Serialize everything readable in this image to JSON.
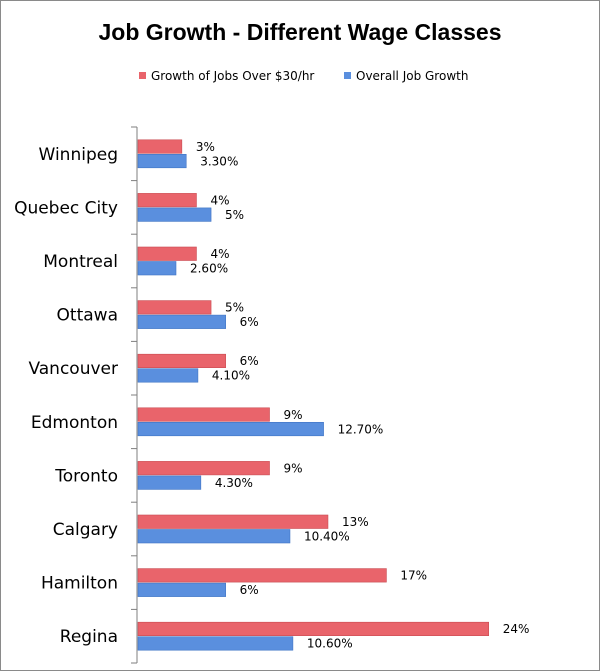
{
  "chart_data": {
    "type": "bar",
    "orientation": "horizontal",
    "title": "Job Growth - Different Wage Classes",
    "categories": [
      "Winnipeg",
      "Quebec City",
      "Montreal",
      "Ottawa",
      "Vancouver",
      "Edmonton",
      "Toronto",
      "Calgary",
      "Hamilton",
      "Regina"
    ],
    "series": [
      {
        "name": "Growth of Jobs Over $30/hr",
        "color": "#e9646b",
        "values": [
          3,
          4,
          4,
          5,
          6,
          9,
          9,
          13,
          17,
          24
        ],
        "labels": [
          "3%",
          "4%",
          "4%",
          "5%",
          "6%",
          "9%",
          "9%",
          "13%",
          "17%",
          "24%"
        ]
      },
      {
        "name": "Overall Job Growth",
        "color": "#5a8fde",
        "values": [
          3.3,
          5,
          2.6,
          6,
          4.1,
          12.7,
          4.3,
          10.4,
          6,
          10.6
        ],
        "labels": [
          "3.30%",
          "5%",
          "2.60%",
          "6%",
          "4.10%",
          "12.70%",
          "4.30%",
          "10.40%",
          "6%",
          "10.60%"
        ]
      }
    ],
    "xlim": [
      0,
      24.5
    ],
    "legend": "top",
    "grid": false
  }
}
